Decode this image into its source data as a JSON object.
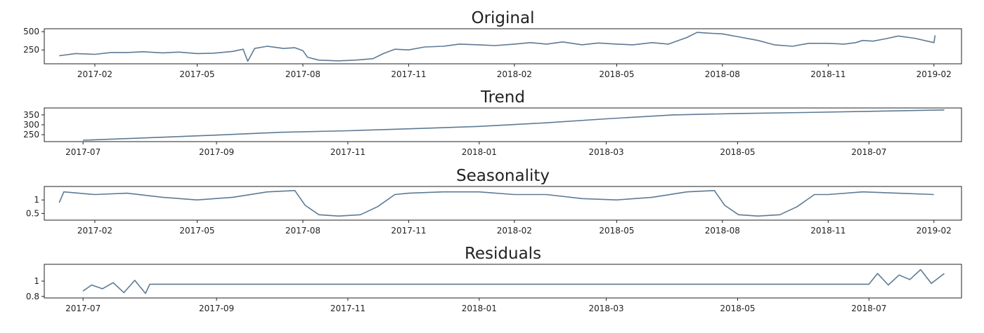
{
  "colors": {
    "line": "#5d7a94",
    "axis": "#222222",
    "background": "#ffffff"
  },
  "chart_data": [
    {
      "type": "line",
      "title": "Original",
      "x_type": "date",
      "xlim": [
        "2016-12-19",
        "2019-02-25"
      ],
      "ylim": [
        60,
        540
      ],
      "x_ticks": [
        "2017-02",
        "2017-05",
        "2017-08",
        "2017-11",
        "2018-02",
        "2018-05",
        "2018-08",
        "2018-11",
        "2019-02"
      ],
      "y_ticks": [
        250,
        500
      ],
      "x": [
        "2017-01-01",
        "2017-01-15",
        "2017-02-01",
        "2017-02-15",
        "2017-03-01",
        "2017-03-15",
        "2017-04-01",
        "2017-04-15",
        "2017-05-01",
        "2017-05-15",
        "2017-06-01",
        "2017-06-10",
        "2017-06-14",
        "2017-06-20",
        "2017-07-01",
        "2017-07-15",
        "2017-07-25",
        "2017-08-01",
        "2017-08-05",
        "2017-08-15",
        "2017-09-01",
        "2017-09-15",
        "2017-10-01",
        "2017-10-10",
        "2017-10-20",
        "2017-11-01",
        "2017-11-15",
        "2017-12-01",
        "2017-12-15",
        "2018-01-01",
        "2018-01-15",
        "2018-02-01",
        "2018-02-15",
        "2018-03-01",
        "2018-03-15",
        "2018-04-01",
        "2018-04-15",
        "2018-05-01",
        "2018-05-15",
        "2018-06-01",
        "2018-06-15",
        "2018-07-01",
        "2018-07-10",
        "2018-07-20",
        "2018-08-01",
        "2018-08-15",
        "2018-09-01",
        "2018-09-15",
        "2018-10-01",
        "2018-10-15",
        "2018-11-01",
        "2018-11-15",
        "2018-11-25",
        "2018-12-01",
        "2018-12-10",
        "2018-12-20",
        "2019-01-01",
        "2019-01-15",
        "2019-02-01",
        "2019-02-02"
      ],
      "y": [
        170,
        200,
        190,
        215,
        215,
        225,
        210,
        220,
        200,
        205,
        230,
        260,
        95,
        270,
        300,
        270,
        280,
        240,
        150,
        110,
        100,
        110,
        130,
        200,
        260,
        250,
        290,
        300,
        330,
        320,
        310,
        330,
        350,
        330,
        360,
        320,
        345,
        330,
        320,
        350,
        330,
        420,
        490,
        480,
        470,
        430,
        380,
        320,
        300,
        340,
        340,
        330,
        350,
        380,
        370,
        400,
        440,
        410,
        350,
        450
      ],
      "series": [
        {
          "values": "y"
        }
      ]
    },
    {
      "type": "line",
      "title": "Trend",
      "x_type": "date",
      "xlim": [
        "2017-06-13",
        "2018-08-13"
      ],
      "ylim": [
        215,
        385
      ],
      "x_ticks": [
        "2017-07",
        "2017-09",
        "2017-11",
        "2018-01",
        "2018-03",
        "2018-05",
        "2018-07"
      ],
      "y_ticks": [
        250,
        300,
        350
      ],
      "x": [
        "2017-07-01",
        "2017-08-01",
        "2017-09-01",
        "2017-10-01",
        "2017-11-01",
        "2017-12-01",
        "2018-01-01",
        "2018-02-01",
        "2018-03-01",
        "2018-04-01",
        "2018-05-01",
        "2018-06-01",
        "2018-07-01",
        "2018-08-05"
      ],
      "y": [
        222,
        235,
        248,
        262,
        270,
        280,
        292,
        310,
        330,
        350,
        357,
        362,
        368,
        375
      ],
      "series": [
        {
          "values": "y"
        }
      ]
    },
    {
      "type": "line",
      "title": "Seasonality",
      "x_type": "date",
      "xlim": [
        "2016-12-19",
        "2019-02-25"
      ],
      "ylim": [
        0.25,
        1.5
      ],
      "x_ticks": [
        "2017-02",
        "2017-05",
        "2017-08",
        "2017-11",
        "2018-02",
        "2018-05",
        "2018-08",
        "2018-11",
        "2019-02"
      ],
      "y_ticks": [
        0.5,
        1.0
      ],
      "x": [
        "2017-01-01",
        "2017-01-05",
        "2017-02-01",
        "2017-03-01",
        "2017-04-01",
        "2017-05-01",
        "2017-06-01",
        "2017-07-01",
        "2017-07-25",
        "2017-08-03",
        "2017-08-15",
        "2017-09-01",
        "2017-09-20",
        "2017-10-05",
        "2017-10-20",
        "2017-11-01",
        "2017-12-01",
        "2018-01-01",
        "2018-02-01",
        "2018-03-01",
        "2018-04-01",
        "2018-05-01",
        "2018-06-01",
        "2018-07-01",
        "2018-07-25",
        "2018-08-03",
        "2018-08-15",
        "2018-09-01",
        "2018-09-20",
        "2018-10-05",
        "2018-10-20",
        "2018-11-01",
        "2018-12-01",
        "2019-01-01",
        "2019-02-01"
      ],
      "y": [
        0.9,
        1.3,
        1.2,
        1.25,
        1.1,
        1.0,
        1.1,
        1.3,
        1.35,
        0.8,
        0.45,
        0.4,
        0.45,
        0.75,
        1.2,
        1.25,
        1.3,
        1.3,
        1.2,
        1.2,
        1.05,
        1.0,
        1.1,
        1.3,
        1.35,
        0.8,
        0.45,
        0.4,
        0.45,
        0.75,
        1.2,
        1.2,
        1.3,
        1.25,
        1.2
      ],
      "series": [
        {
          "values": "y"
        }
      ]
    },
    {
      "type": "line",
      "title": "Residuals",
      "x_type": "date",
      "xlim": [
        "2017-06-13",
        "2018-08-13"
      ],
      "ylim": [
        0.78,
        1.22
      ],
      "x_ticks": [
        "2017-07",
        "2017-09",
        "2017-11",
        "2018-01",
        "2018-03",
        "2018-05",
        "2018-07"
      ],
      "y_ticks": [
        0.8,
        1.0
      ],
      "x": [
        "2017-07-01",
        "2017-07-05",
        "2017-07-10",
        "2017-07-15",
        "2017-07-20",
        "2017-07-25",
        "2017-07-30",
        "2017-08-01",
        "2018-07-01",
        "2018-07-05",
        "2018-07-10",
        "2018-07-15",
        "2018-07-20",
        "2018-07-25",
        "2018-07-30",
        "2018-08-05"
      ],
      "y": [
        0.87,
        0.95,
        0.9,
        0.98,
        0.85,
        1.01,
        0.84,
        0.96,
        0.96,
        1.1,
        0.95,
        1.08,
        1.02,
        1.15,
        0.97,
        1.1
      ],
      "series": [
        {
          "values": "y"
        }
      ]
    }
  ]
}
